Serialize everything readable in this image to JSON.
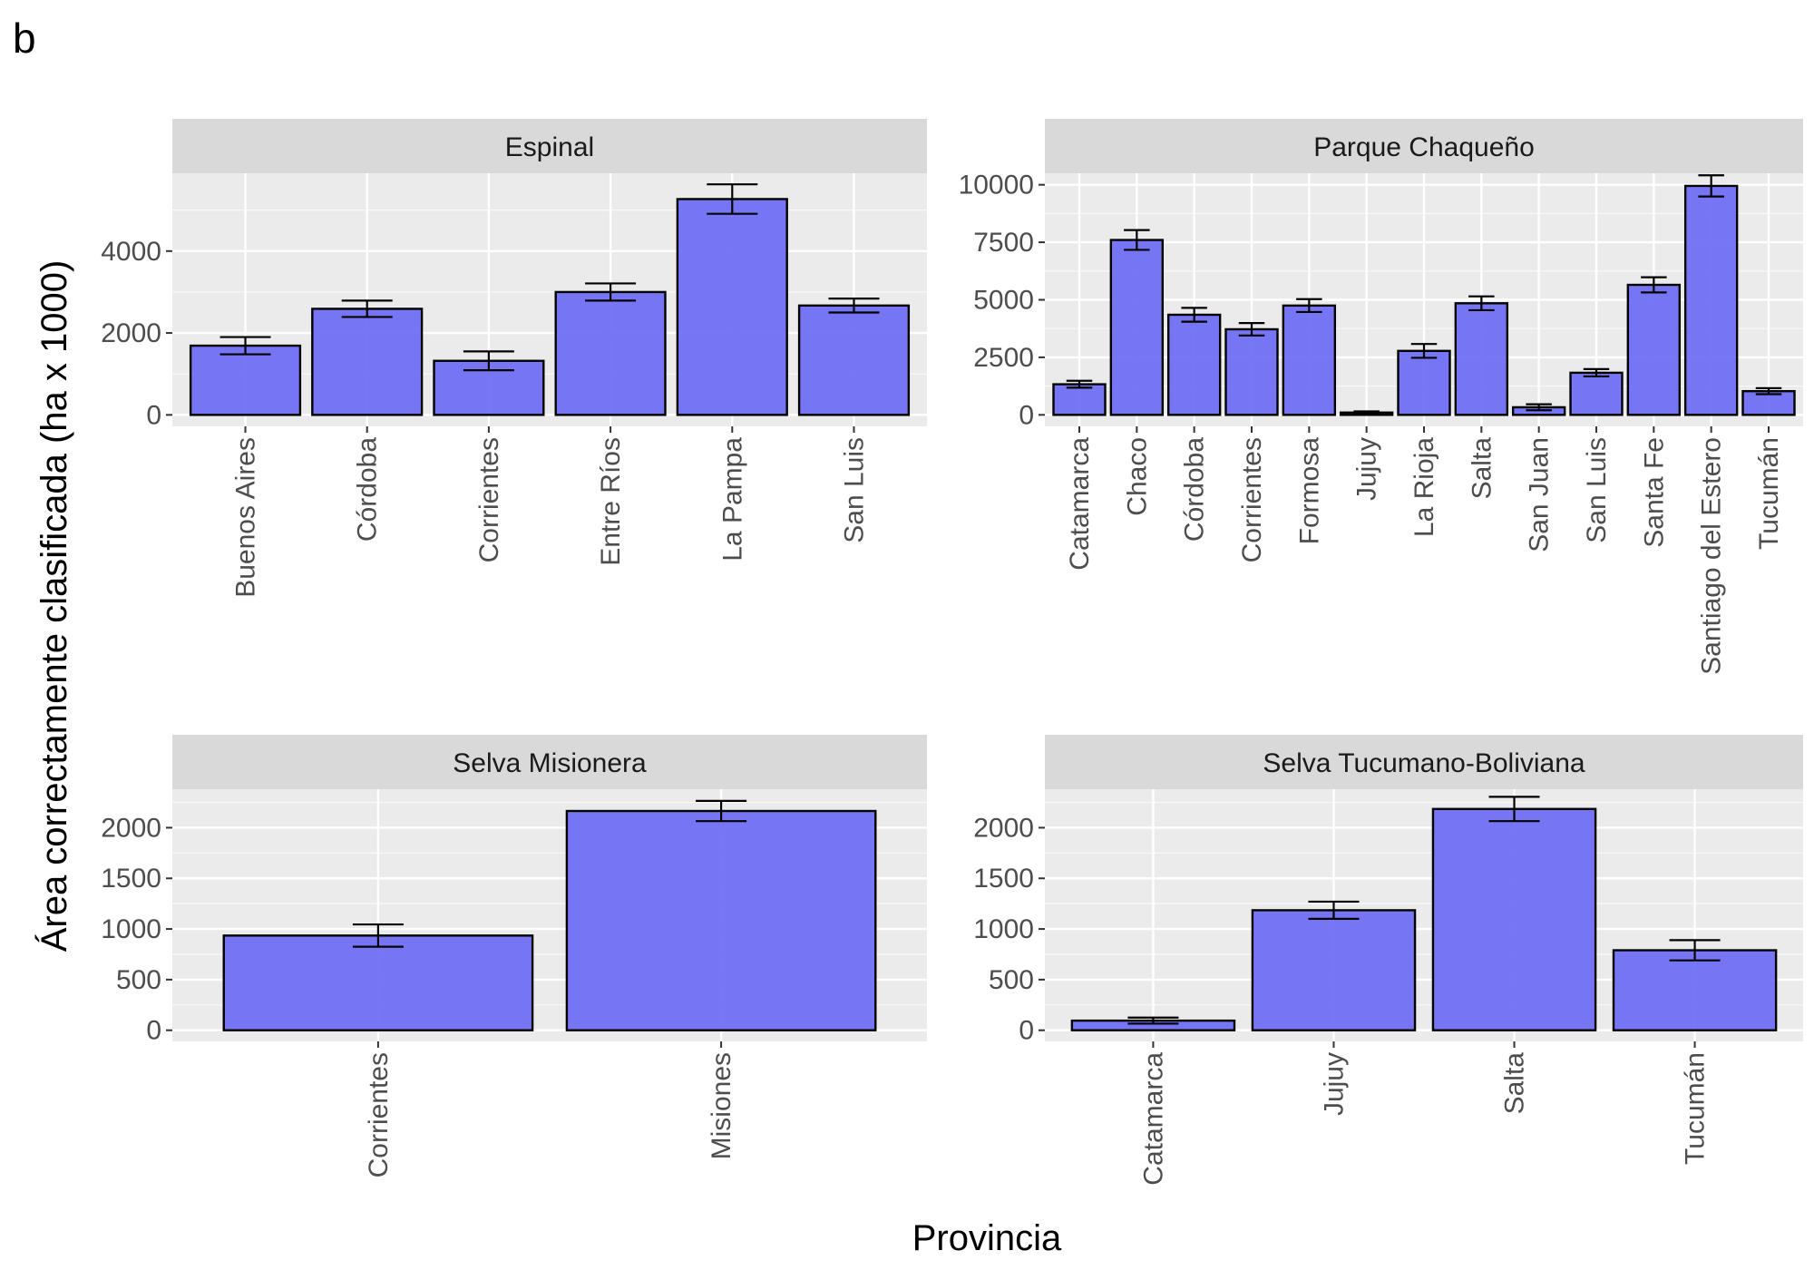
{
  "figure": {
    "tag": "b",
    "xlabel": "Provincia",
    "ylabel": "Área correctamente clasificada (ha x 1000)"
  },
  "colors": {
    "bar_fill": "#7070f5",
    "bar_stroke": "#000000",
    "panel_bg": "#ebebeb",
    "strip_bg": "#d9d9d9",
    "grid_major": "#ffffff"
  },
  "chart_data": [
    {
      "type": "bar",
      "title": "Espinal",
      "categories": [
        "Buenos Aires",
        "Córdoba",
        "Corrientes",
        "Entre Ríos",
        "La Pampa",
        "San Luis"
      ],
      "values": [
        1690,
        2590,
        1320,
        3000,
        5270,
        2670
      ],
      "errors": [
        210,
        200,
        230,
        210,
        360,
        170
      ],
      "yticks": [
        0,
        2000,
        4000
      ],
      "ylim": [
        -280,
        5900
      ],
      "grid": true
    },
    {
      "type": "bar",
      "title": "Parque Chaqueño",
      "categories": [
        "Catamarca",
        "Chaco",
        "Córdoba",
        "Corrientes",
        "Formosa",
        "Jujuy",
        "La Rioja",
        "Salta",
        "San Juan",
        "San Luis",
        "Santa Fe",
        "Santiago del Estero",
        "Tucumán"
      ],
      "values": [
        1330,
        7600,
        4350,
        3720,
        4750,
        100,
        2780,
        4850,
        330,
        1830,
        5650,
        9950,
        1030
      ],
      "errors": [
        150,
        430,
        300,
        270,
        280,
        50,
        300,
        300,
        130,
        160,
        330,
        460,
        130
      ],
      "yticks": [
        0,
        2500,
        5000,
        7500,
        10000
      ],
      "ylim": [
        -500,
        10500
      ],
      "grid": true
    },
    {
      "type": "bar",
      "title": "Selva Misionera",
      "categories": [
        "Corrientes",
        "Misiones"
      ],
      "values": [
        935,
        2165
      ],
      "errors": [
        110,
        100
      ],
      "yticks": [
        0,
        500,
        1000,
        1500,
        2000
      ],
      "ylim": [
        -110,
        2380
      ],
      "grid": true
    },
    {
      "type": "bar",
      "title": "Selva Tucumano-Boliviana",
      "categories": [
        "Catamarca",
        "Jujuy",
        "Salta",
        "Tucumán"
      ],
      "values": [
        95,
        1185,
        2185,
        790
      ],
      "errors": [
        30,
        85,
        120,
        100
      ],
      "yticks": [
        0,
        500,
        1000,
        1500,
        2000
      ],
      "ylim": [
        -110,
        2380
      ],
      "grid": true
    }
  ]
}
